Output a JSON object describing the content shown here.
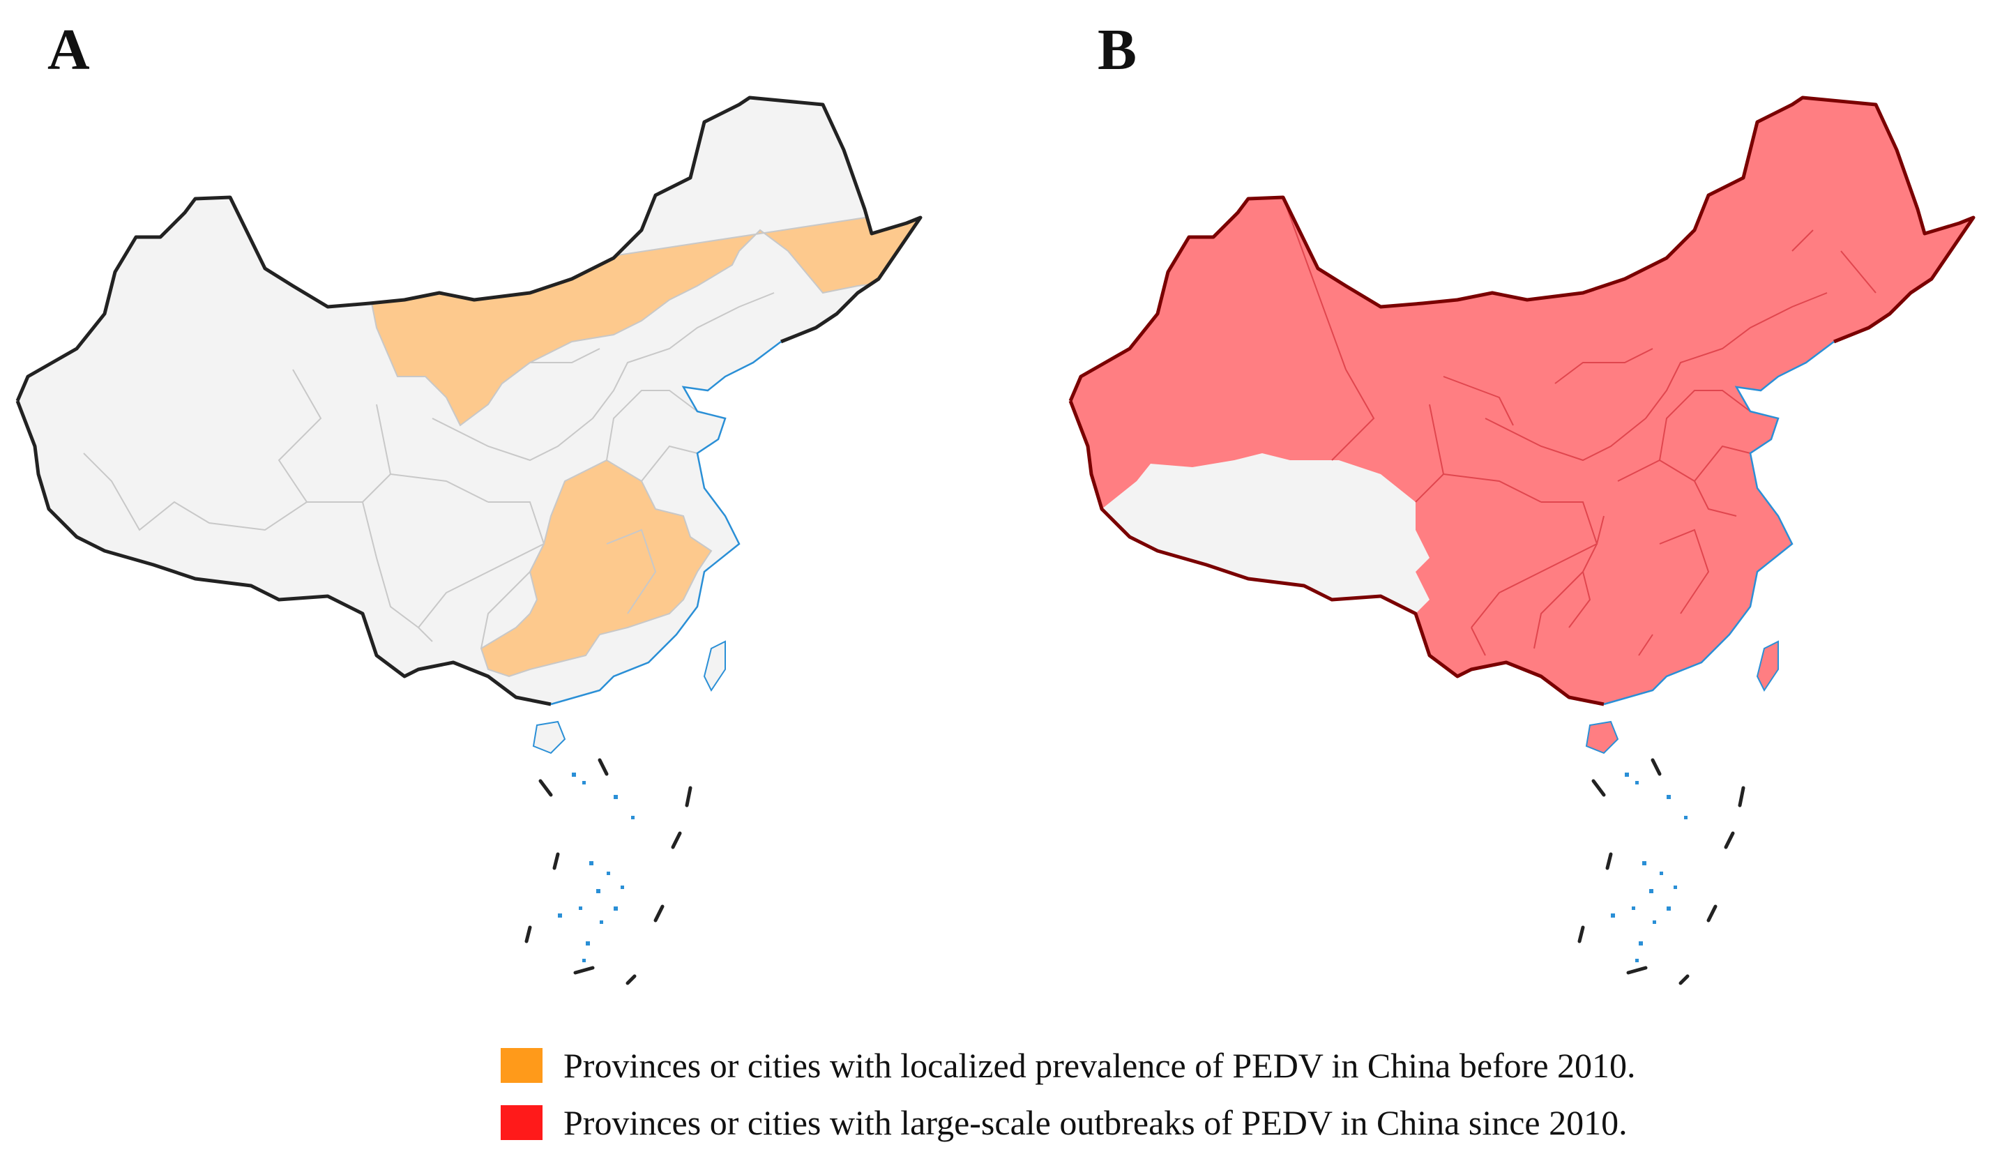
{
  "panels": {
    "a": {
      "label": "A",
      "fill_default": "#f3f3f3",
      "fill_highlight": "#fdc98d",
      "outline": "#222222"
    },
    "b": {
      "label": "B",
      "fill_default": "#f3f3f3",
      "fill_highlight": "#ff7e82",
      "outline": "#7a0000"
    }
  },
  "colors": {
    "sea": "#2a8fd6",
    "dash": "#222222",
    "internal_a": "#c8c8c8",
    "internal_b": "#e0464e"
  },
  "legend": [
    {
      "color": "#ff9a1a",
      "text": "Provinces or cities with localized prevalence of PEDV in China before 2010."
    },
    {
      "color": "#ff1a1a",
      "text": "Provinces or cities with large-scale outbreaks of PEDV in China since 2010."
    }
  ]
}
